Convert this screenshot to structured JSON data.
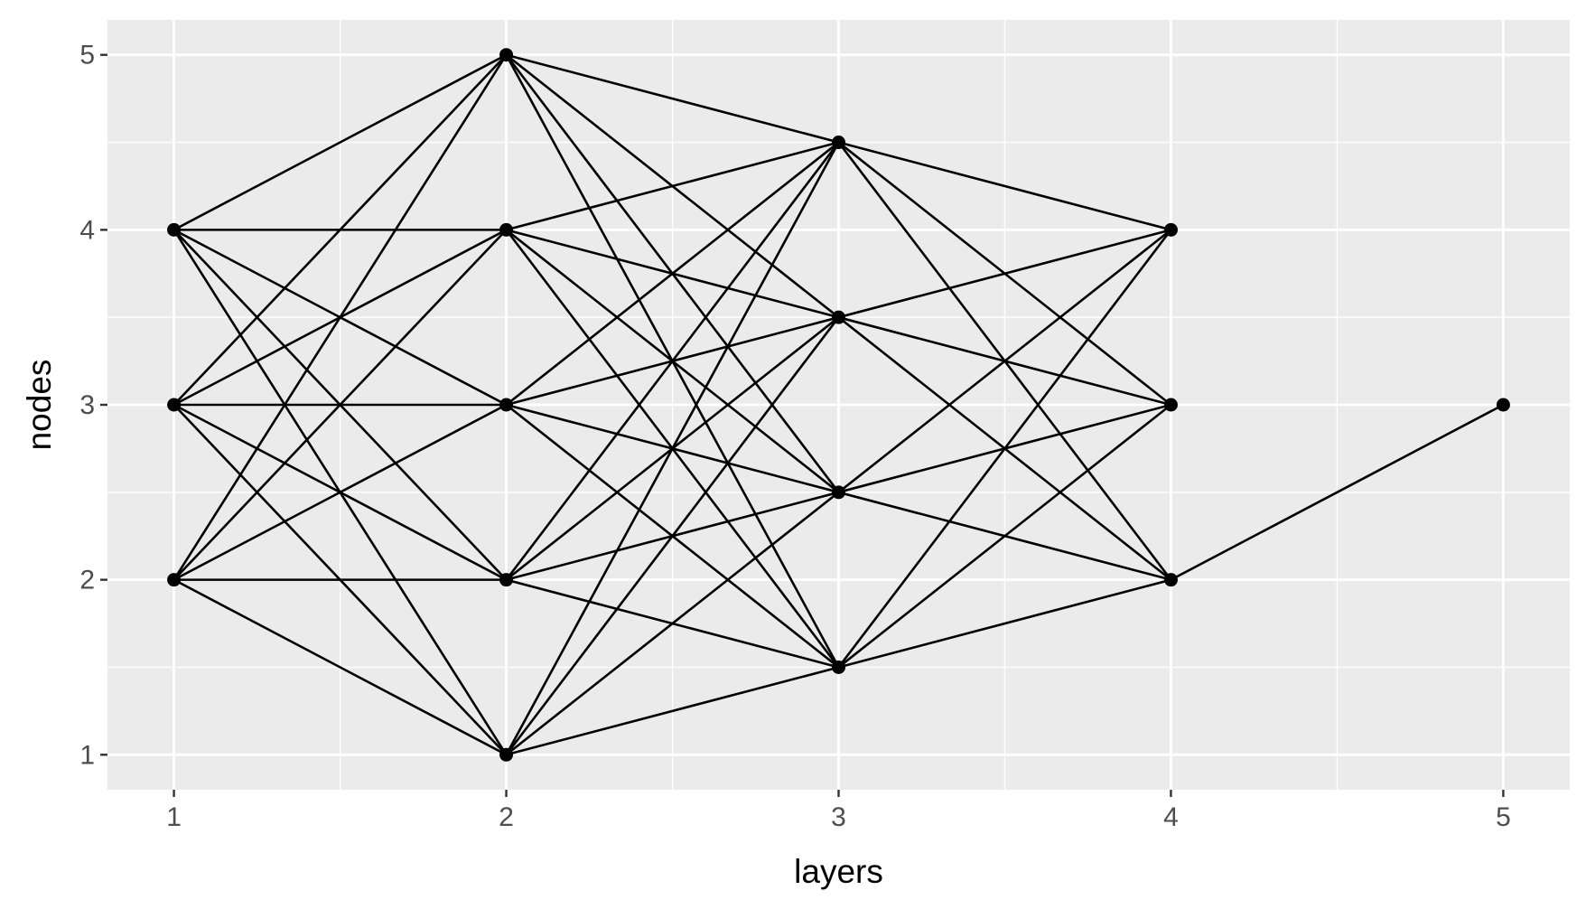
{
  "chart_data": {
    "type": "scatter",
    "title": "",
    "xlabel": "layers",
    "ylabel": "nodes",
    "xlim": [
      0.8,
      5.2
    ],
    "ylim": [
      0.8,
      5.2
    ],
    "x_ticks": [
      1,
      2,
      3,
      4,
      5
    ],
    "y_ticks": [
      1,
      2,
      3,
      4,
      5
    ],
    "grid": true,
    "legend": "none",
    "colors": {
      "panel_background": "#ebebeb",
      "grid": "#ffffff",
      "points": "#000000",
      "edges": "#000000"
    },
    "series": [
      {
        "values": [
          {
            "x": 1,
            "y": 4
          },
          {
            "x": 1,
            "y": 3
          },
          {
            "x": 1,
            "y": 2
          },
          {
            "x": 2,
            "y": 5
          },
          {
            "x": 2,
            "y": 4
          },
          {
            "x": 2,
            "y": 3
          },
          {
            "x": 2,
            "y": 2
          },
          {
            "x": 2,
            "y": 1
          },
          {
            "x": 3,
            "y": 4.5
          },
          {
            "x": 3,
            "y": 3.5
          },
          {
            "x": 3,
            "y": 2.5
          },
          {
            "x": 3,
            "y": 1.5
          },
          {
            "x": 4,
            "y": 4
          },
          {
            "x": 4,
            "y": 3
          },
          {
            "x": 4,
            "y": 2
          },
          {
            "x": 5,
            "y": 3
          }
        ]
      }
    ],
    "edges": [
      [
        [
          1,
          4
        ],
        [
          2,
          5
        ]
      ],
      [
        [
          1,
          4
        ],
        [
          2,
          4
        ]
      ],
      [
        [
          1,
          4
        ],
        [
          2,
          3
        ]
      ],
      [
        [
          1,
          4
        ],
        [
          2,
          2
        ]
      ],
      [
        [
          1,
          4
        ],
        [
          2,
          1
        ]
      ],
      [
        [
          1,
          3
        ],
        [
          2,
          5
        ]
      ],
      [
        [
          1,
          3
        ],
        [
          2,
          4
        ]
      ],
      [
        [
          1,
          3
        ],
        [
          2,
          3
        ]
      ],
      [
        [
          1,
          3
        ],
        [
          2,
          2
        ]
      ],
      [
        [
          1,
          3
        ],
        [
          2,
          1
        ]
      ],
      [
        [
          1,
          2
        ],
        [
          2,
          5
        ]
      ],
      [
        [
          1,
          2
        ],
        [
          2,
          4
        ]
      ],
      [
        [
          1,
          2
        ],
        [
          2,
          3
        ]
      ],
      [
        [
          1,
          2
        ],
        [
          2,
          2
        ]
      ],
      [
        [
          1,
          2
        ],
        [
          2,
          1
        ]
      ],
      [
        [
          2,
          5
        ],
        [
          3,
          4.5
        ]
      ],
      [
        [
          2,
          5
        ],
        [
          3,
          3.5
        ]
      ],
      [
        [
          2,
          5
        ],
        [
          3,
          2.5
        ]
      ],
      [
        [
          2,
          5
        ],
        [
          3,
          1.5
        ]
      ],
      [
        [
          2,
          4
        ],
        [
          3,
          4.5
        ]
      ],
      [
        [
          2,
          4
        ],
        [
          3,
          3.5
        ]
      ],
      [
        [
          2,
          4
        ],
        [
          3,
          2.5
        ]
      ],
      [
        [
          2,
          4
        ],
        [
          3,
          1.5
        ]
      ],
      [
        [
          2,
          3
        ],
        [
          3,
          4.5
        ]
      ],
      [
        [
          2,
          3
        ],
        [
          3,
          3.5
        ]
      ],
      [
        [
          2,
          3
        ],
        [
          3,
          2.5
        ]
      ],
      [
        [
          2,
          3
        ],
        [
          3,
          1.5
        ]
      ],
      [
        [
          2,
          2
        ],
        [
          3,
          4.5
        ]
      ],
      [
        [
          2,
          2
        ],
        [
          3,
          3.5
        ]
      ],
      [
        [
          2,
          2
        ],
        [
          3,
          2.5
        ]
      ],
      [
        [
          2,
          2
        ],
        [
          3,
          1.5
        ]
      ],
      [
        [
          2,
          1
        ],
        [
          3,
          4.5
        ]
      ],
      [
        [
          2,
          1
        ],
        [
          3,
          3.5
        ]
      ],
      [
        [
          2,
          1
        ],
        [
          3,
          2.5
        ]
      ],
      [
        [
          2,
          1
        ],
        [
          3,
          1.5
        ]
      ],
      [
        [
          3,
          4.5
        ],
        [
          4,
          4
        ]
      ],
      [
        [
          3,
          4.5
        ],
        [
          4,
          3
        ]
      ],
      [
        [
          3,
          4.5
        ],
        [
          4,
          2
        ]
      ],
      [
        [
          3,
          3.5
        ],
        [
          4,
          4
        ]
      ],
      [
        [
          3,
          3.5
        ],
        [
          4,
          3
        ]
      ],
      [
        [
          3,
          3.5
        ],
        [
          4,
          2
        ]
      ],
      [
        [
          3,
          2.5
        ],
        [
          4,
          4
        ]
      ],
      [
        [
          3,
          2.5
        ],
        [
          4,
          3
        ]
      ],
      [
        [
          3,
          2.5
        ],
        [
          4,
          2
        ]
      ],
      [
        [
          3,
          1.5
        ],
        [
          4,
          4
        ]
      ],
      [
        [
          3,
          1.5
        ],
        [
          4,
          3
        ]
      ],
      [
        [
          3,
          1.5
        ],
        [
          4,
          2
        ]
      ],
      [
        [
          4,
          2
        ],
        [
          5,
          3
        ]
      ]
    ]
  }
}
